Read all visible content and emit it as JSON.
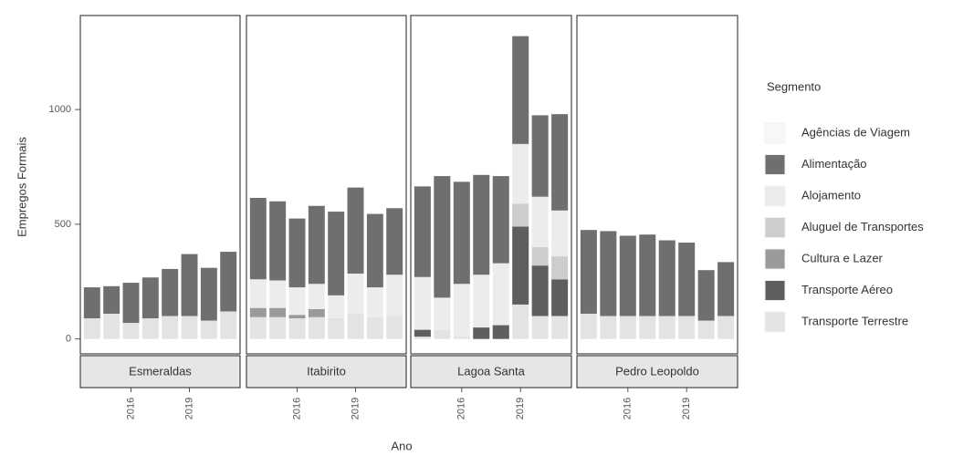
{
  "chart_data": {
    "type": "bar",
    "stacked": true,
    "y_label": "Empregos Formais",
    "x_label": "Ano",
    "legend_title": "Segmento",
    "ylim": [
      -65,
      1410
    ],
    "yticks": [
      0,
      500,
      1000
    ],
    "series": [
      {
        "name": "Agências de Viagem",
        "color": "#f7f7f7"
      },
      {
        "name": "Alimentação",
        "color": "#6f6f6f"
      },
      {
        "name": "Alojamento",
        "color": "#ececec"
      },
      {
        "name": "Aluguel de Transportes",
        "color": "#cdcdcd"
      },
      {
        "name": "Cultura e Lazer",
        "color": "#9a9a9a"
      },
      {
        "name": "Transporte Aéreo",
        "color": "#5e5e5e"
      },
      {
        "name": "Transporte Terrestre",
        "color": "#e3e3e3"
      }
    ],
    "facets": [
      {
        "title": "Esmeraldas",
        "categories": [
          null,
          null,
          "2016",
          null,
          null,
          "2019",
          null,
          null
        ],
        "series": [
          {
            "values": [
              0,
              0,
              0,
              0,
              0,
              0,
              0,
              0
            ]
          },
          {
            "values": [
              135,
              120,
              175,
              178,
              205,
              270,
              230,
              260
            ]
          },
          {
            "values": [
              0,
              0,
              0,
              0,
              0,
              0,
              0,
              0
            ]
          },
          {
            "values": [
              0,
              0,
              0,
              0,
              0,
              0,
              0,
              0
            ]
          },
          {
            "values": [
              0,
              0,
              0,
              0,
              0,
              0,
              0,
              0
            ]
          },
          {
            "values": [
              0,
              0,
              0,
              0,
              0,
              0,
              0,
              0
            ]
          },
          {
            "values": [
              90,
              110,
              70,
              90,
              100,
              100,
              80,
              120
            ]
          }
        ]
      },
      {
        "title": "Itabirito",
        "categories": [
          null,
          null,
          "2016",
          null,
          null,
          "2019",
          null,
          null
        ],
        "series": [
          {
            "values": [
              0,
              0,
              0,
              0,
              0,
              0,
              0,
              0
            ]
          },
          {
            "values": [
              355,
              345,
              300,
              340,
              365,
              375,
              320,
              290
            ]
          },
          {
            "values": [
              125,
              120,
              120,
              110,
              100,
              175,
              130,
              180
            ]
          },
          {
            "values": [
              0,
              0,
              0,
              0,
              0,
              0,
              0,
              0
            ]
          },
          {
            "values": [
              40,
              40,
              15,
              35,
              0,
              0,
              0,
              0
            ]
          },
          {
            "values": [
              0,
              0,
              0,
              0,
              0,
              0,
              0,
              0
            ]
          },
          {
            "values": [
              95,
              95,
              90,
              95,
              90,
              110,
              95,
              100
            ]
          }
        ]
      },
      {
        "title": "Lagoa Santa",
        "categories": [
          null,
          null,
          "2016",
          null,
          null,
          "2019",
          null,
          null
        ],
        "series": [
          {
            "values": [
              0,
              0,
              0,
              0,
              0,
              0,
              0,
              0
            ]
          },
          {
            "values": [
              395,
              530,
              445,
              435,
              380,
              470,
              355,
              420
            ]
          },
          {
            "values": [
              230,
              140,
              230,
              230,
              270,
              260,
              220,
              200
            ]
          },
          {
            "values": [
              0,
              0,
              0,
              0,
              0,
              100,
              80,
              100
            ]
          },
          {
            "values": [
              0,
              0,
              0,
              0,
              0,
              0,
              0,
              0
            ]
          },
          {
            "values": [
              30,
              0,
              0,
              50,
              60,
              340,
              220,
              160
            ]
          },
          {
            "values": [
              10,
              40,
              10,
              0,
              0,
              150,
              100,
              100
            ]
          }
        ]
      },
      {
        "title": "Pedro Leopoldo",
        "categories": [
          null,
          null,
          "2016",
          null,
          null,
          "2019",
          null,
          null
        ],
        "series": [
          {
            "values": [
              0,
              0,
              0,
              0,
              0,
              0,
              0,
              0
            ]
          },
          {
            "values": [
              365,
              370,
              350,
              355,
              330,
              320,
              220,
              235
            ]
          },
          {
            "values": [
              0,
              0,
              0,
              0,
              0,
              0,
              0,
              0
            ]
          },
          {
            "values": [
              0,
              0,
              0,
              0,
              0,
              0,
              0,
              0
            ]
          },
          {
            "values": [
              0,
              0,
              0,
              0,
              0,
              0,
              0,
              0
            ]
          },
          {
            "values": [
              0,
              0,
              0,
              0,
              0,
              0,
              0,
              0
            ]
          },
          {
            "values": [
              110,
              100,
              100,
              100,
              100,
              100,
              80,
              100
            ]
          }
        ]
      }
    ]
  }
}
